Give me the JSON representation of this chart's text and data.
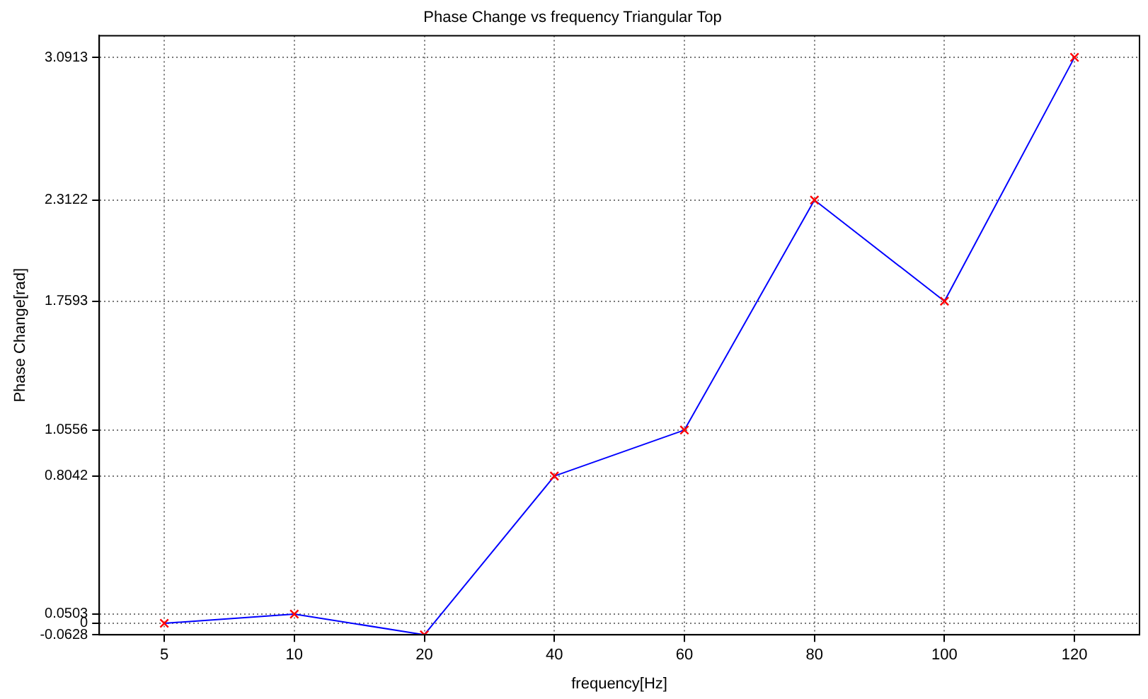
{
  "chart_data": {
    "type": "line",
    "title": "Phase Change vs frequency Triangular Top",
    "xlabel": "frequency[Hz]",
    "ylabel": "Phase Change[rad]",
    "categories": [
      "5",
      "10",
      "20",
      "40",
      "60",
      "80",
      "100",
      "120"
    ],
    "series": [
      {
        "color": "#0000ff",
        "values": [
          0,
          0.0503,
          -0.0628,
          0.8042,
          1.0556,
          2.3122,
          1.7593,
          3.0913
        ]
      }
    ],
    "ylim": [
      -0.0628,
      3.21
    ],
    "yticks": [
      -0.0628,
      0,
      0.0503,
      0.8042,
      1.0556,
      1.7593,
      2.3122,
      3.0913
    ],
    "grid": true,
    "marker": "cross",
    "line_style": "solid",
    "legend": false
  }
}
